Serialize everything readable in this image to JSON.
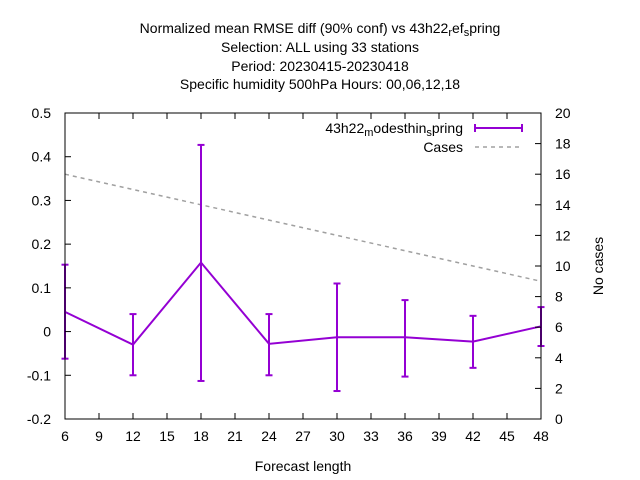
{
  "chart_data": {
    "type": "line",
    "title_lines": [
      [
        "Normalized mean RMSE diff (90% conf) vs 43h22",
        "r",
        "ef",
        "s",
        "pring"
      ],
      [
        "Selection: ALL using    33 stations"
      ],
      [
        "Period: 20230415-20230418"
      ],
      [
        "Specific humidity 500hPa   Hours:  00,06,12,18"
      ]
    ],
    "xlabel": "Forecast length",
    "ylabel": "",
    "y2label": "No cases",
    "xlim": [
      6,
      48
    ],
    "xticks": [
      6,
      9,
      12,
      15,
      18,
      21,
      24,
      27,
      30,
      33,
      36,
      39,
      42,
      45,
      48
    ],
    "ylim": [
      -0.2,
      0.5
    ],
    "yticks": [
      -0.2,
      -0.1,
      0,
      0.1,
      0.2,
      0.3,
      0.4,
      0.5
    ],
    "y2lim": [
      0,
      20
    ],
    "y2ticks": [
      0,
      2,
      4,
      6,
      8,
      10,
      12,
      14,
      16,
      18,
      20
    ],
    "legend_position": "top-right",
    "series": [
      {
        "name_parts": [
          "43h22",
          "m",
          "odesthin",
          "s",
          "pring"
        ],
        "axis": "y",
        "color": "#9400d3",
        "style": "errorbars",
        "x": [
          6,
          12,
          18,
          24,
          30,
          36,
          42,
          48
        ],
        "y": [
          0.045,
          -0.03,
          0.158,
          -0.028,
          -0.013,
          -0.013,
          -0.023,
          0.012
        ],
        "err_low": [
          -0.062,
          -0.1,
          -0.113,
          -0.1,
          -0.136,
          -0.103,
          -0.083,
          -0.033
        ],
        "err_high": [
          0.153,
          0.04,
          0.427,
          0.04,
          0.11,
          0.072,
          0.036,
          0.056
        ]
      },
      {
        "name": "Cases",
        "axis": "y2",
        "color": "#a0a0a0",
        "style": "dashed",
        "x": [
          6,
          12,
          18,
          24,
          30,
          36,
          42,
          48
        ],
        "y": [
          16,
          15,
          14,
          13,
          12,
          11,
          10,
          9
        ]
      }
    ]
  }
}
